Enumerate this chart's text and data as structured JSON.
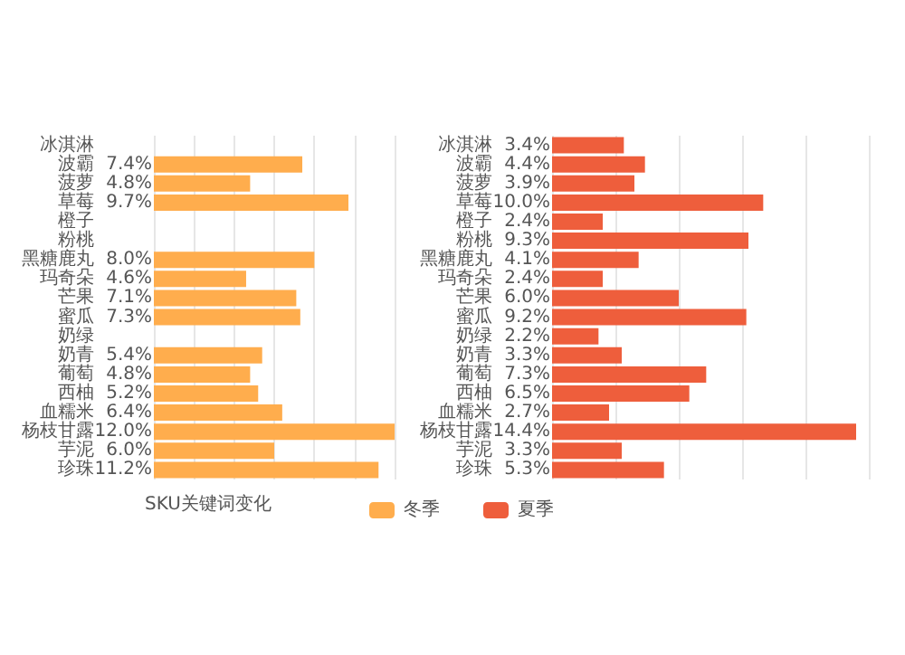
{
  "chart_data": [
    {
      "type": "bar",
      "orientation": "horizontal",
      "legend_title": "SKU关键词变化",
      "legend": "bottom",
      "grid": "x",
      "tick_labels": "y",
      "categories": [
        "冰淇淋",
        "波霸",
        "菠萝",
        "草莓",
        "橙子",
        "粉桃",
        "黑糖鹿丸",
        "玛奇朵",
        "芒果",
        "蜜瓜",
        "奶绿",
        "奶青",
        "葡萄",
        "西柚",
        "血糯米",
        "杨枝甘露",
        "芋泥",
        "珍珠"
      ],
      "series": [
        {
          "name": "冬季",
          "color": "#ffad4d",
          "values": [
            null,
            7.4,
            4.8,
            9.7,
            null,
            null,
            8.0,
            4.6,
            7.1,
            7.3,
            null,
            5.4,
            4.8,
            5.2,
            6.4,
            12.0,
            6.0,
            11.2
          ],
          "value_labels": [
            null,
            "7.4%",
            "4.8%",
            "9.7%",
            null,
            null,
            "8.0%",
            "4.6%",
            "7.1%",
            "7.3%",
            null,
            "5.4%",
            "4.8%",
            "5.2%",
            "6.4%",
            "12.0%",
            "6.0%",
            "11.2%"
          ]
        }
      ],
      "relative": false
    },
    {
      "type": "bar",
      "orientation": "horizontal",
      "legend": "bottom",
      "grid": "x",
      "tick_labels": "y",
      "categories": [
        "冰淇淋",
        "波霸",
        "菠萝",
        "草莓",
        "橙子",
        "粉桃",
        "黑糖鹿丸",
        "玛奇朵",
        "芒果",
        "蜜瓜",
        "奶绿",
        "奶青",
        "葡萄",
        "西柚",
        "血糯米",
        "杨枝甘露",
        "芋泥",
        "珍珠"
      ],
      "series": [
        {
          "name": "夏季",
          "color": "#ee5e3c",
          "values": [
            3.4,
            4.4,
            3.9,
            10.0,
            2.4,
            9.3,
            4.1,
            2.4,
            6.0,
            9.2,
            2.2,
            3.3,
            7.3,
            6.5,
            2.7,
            14.4,
            3.3,
            5.3
          ],
          "value_labels": [
            "3.4%",
            "4.4%",
            "3.9%",
            "10.0%",
            "2.4%",
            "9.3%",
            "4.1%",
            "2.4%",
            "6.0%",
            "9.2%",
            "2.2%",
            "3.3%",
            "7.3%",
            "6.5%",
            "2.7%",
            "14.4%",
            "3.3%",
            "5.3%"
          ]
        }
      ],
      "relative": false
    }
  ]
}
